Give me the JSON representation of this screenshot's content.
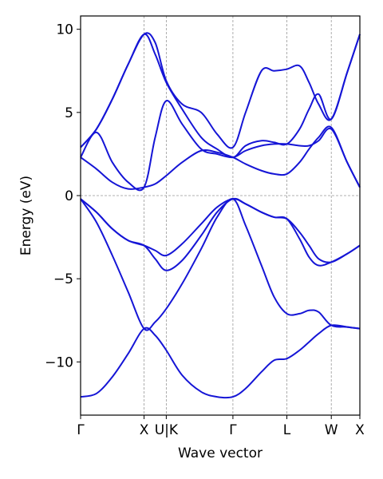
{
  "chart_data": {
    "type": "line",
    "title": "",
    "xlabel": "Wave vector",
    "ylabel": "Energy (eV)",
    "ylim": [
      -13.2,
      10.8
    ],
    "yticks": [
      10,
      5,
      0,
      -5,
      -10
    ],
    "ytick_labels": [
      "10",
      "5",
      "0",
      "−5",
      "−10"
    ],
    "kpoints": [
      {
        "label": "Γ",
        "x": 0
      },
      {
        "label": "X",
        "x": 1
      },
      {
        "label": "U|K",
        "x": 1.35
      },
      {
        "label": "Γ",
        "x": 2.4
      },
      {
        "label": "L",
        "x": 3.25
      },
      {
        "label": "W",
        "x": 3.95
      },
      {
        "label": "X",
        "x": 4.4
      }
    ],
    "zero_line": 0,
    "line_color": "#1515d6",
    "vline_color": "#999999",
    "series": [
      {
        "x": [
          0,
          0.25,
          0.5,
          0.75,
          1,
          1.175,
          1.35,
          1.6,
          1.9,
          2.15,
          2.4,
          2.6,
          2.85,
          3.05,
          3.25,
          3.45,
          3.6,
          3.75,
          3.95,
          4.2,
          4.4
        ],
        "values": [
          -12.1,
          -11.9,
          -10.9,
          -9.5,
          -8.0,
          -8.4,
          -9.3,
          -10.8,
          -11.8,
          -12.1,
          -12.1,
          -11.6,
          -10.6,
          -9.9,
          -9.8,
          -9.3,
          -8.8,
          -8.3,
          -7.8,
          -7.9,
          -8.0
        ]
      },
      {
        "x": [
          0,
          0.25,
          0.5,
          0.75,
          1,
          1.175,
          1.35,
          1.6,
          1.9,
          2.15,
          2.4,
          2.6,
          2.85,
          3.05,
          3.25,
          3.45,
          3.6,
          3.75,
          3.95,
          4.2,
          4.4
        ],
        "values": [
          -0.2,
          -1.6,
          -3.6,
          -5.8,
          -8.0,
          -7.6,
          -6.8,
          -5.3,
          -3.2,
          -1.3,
          -0.2,
          -1.8,
          -4.2,
          -6.1,
          -7.1,
          -7.1,
          -6.9,
          -7.0,
          -7.8,
          -7.9,
          -8.0
        ]
      },
      {
        "x": [
          0,
          0.25,
          0.5,
          0.75,
          1,
          1.175,
          1.35,
          1.6,
          1.9,
          2.15,
          2.4,
          2.6,
          2.85,
          3.05,
          3.25,
          3.45,
          3.6,
          3.75,
          3.95,
          4.2,
          4.4
        ],
        "values": [
          -0.2,
          -1.0,
          -2.0,
          -2.7,
          -3.0,
          -3.8,
          -4.5,
          -3.9,
          -2.4,
          -1.0,
          -0.2,
          -0.5,
          -1.0,
          -1.3,
          -1.4,
          -2.2,
          -3.0,
          -3.8,
          -4.0,
          -3.5,
          -3.0
        ]
      },
      {
        "x": [
          0,
          0.25,
          0.5,
          0.75,
          1,
          1.175,
          1.35,
          1.6,
          1.9,
          2.15,
          2.4,
          2.6,
          2.85,
          3.05,
          3.25,
          3.45,
          3.6,
          3.75,
          3.95,
          4.2,
          4.4
        ],
        "values": [
          -0.2,
          -1.0,
          -2.0,
          -2.7,
          -3.0,
          -3.3,
          -3.6,
          -2.9,
          -1.7,
          -0.7,
          -0.2,
          -0.5,
          -1.0,
          -1.3,
          -1.4,
          -2.6,
          -3.7,
          -4.2,
          -4.0,
          -3.5,
          -3.0
        ]
      },
      {
        "x": [
          0,
          0.25,
          0.5,
          0.75,
          1,
          1.175,
          1.35,
          1.6,
          1.9,
          2.15,
          2.4,
          2.6,
          2.85,
          3.05,
          3.25,
          3.45,
          3.6,
          3.75,
          3.95,
          4.2,
          4.4
        ],
        "values": [
          2.3,
          1.6,
          0.8,
          0.4,
          0.5,
          0.7,
          1.2,
          2.0,
          2.7,
          2.6,
          2.3,
          1.9,
          1.5,
          1.3,
          1.3,
          2.0,
          2.8,
          3.5,
          4.1,
          2.0,
          0.5
        ]
      },
      {
        "x": [
          0,
          0.25,
          0.5,
          0.75,
          1,
          1.175,
          1.35,
          1.6,
          1.9,
          2.15,
          2.4,
          2.6,
          2.85,
          3.05,
          3.25,
          3.45,
          3.6,
          3.75,
          3.95,
          4.2,
          4.4
        ],
        "values": [
          2.3,
          3.8,
          2.0,
          0.8,
          0.5,
          3.5,
          5.7,
          4.3,
          2.8,
          2.5,
          2.3,
          2.7,
          3.0,
          3.1,
          3.1,
          3.0,
          3.0,
          3.3,
          4.0,
          2.0,
          0.5
        ]
      },
      {
        "x": [
          0,
          0.25,
          0.5,
          0.75,
          1,
          1.175,
          1.35,
          1.6,
          1.9,
          2.15,
          2.4,
          2.6,
          2.85,
          3.05,
          3.25,
          3.45,
          3.6,
          3.75,
          3.95,
          4.2,
          4.4
        ],
        "values": [
          2.9,
          4.0,
          5.8,
          7.9,
          9.7,
          8.5,
          6.8,
          5.2,
          3.5,
          2.8,
          2.3,
          3.0,
          3.3,
          3.2,
          3.1,
          4.0,
          5.2,
          6.1,
          4.6,
          7.4,
          9.7
        ]
      },
      {
        "x": [
          0,
          0.25,
          0.5,
          0.75,
          1,
          1.175,
          1.35,
          1.6,
          1.9,
          2.15,
          2.4,
          2.6,
          2.85,
          3.05,
          3.25,
          3.45,
          3.6,
          3.75,
          3.95,
          4.2,
          4.4
        ],
        "values": [
          2.9,
          4.0,
          5.8,
          7.9,
          9.7,
          9.2,
          6.9,
          5.5,
          5.0,
          3.7,
          2.9,
          5.0,
          7.5,
          7.5,
          7.6,
          7.8,
          6.8,
          5.5,
          4.6,
          7.4,
          9.7
        ]
      }
    ]
  }
}
